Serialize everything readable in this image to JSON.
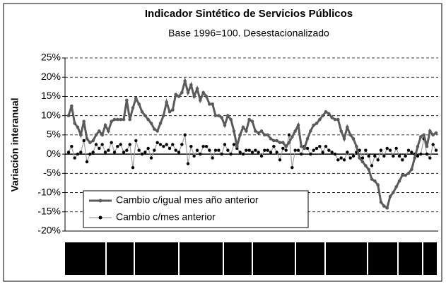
{
  "chart_data": {
    "type": "line",
    "title": "Indicador Sintético de Servicios Públicos",
    "subtitle": "Base 1996=100. Desestacionalizado",
    "y_label": "Variación interanual",
    "ylim": [
      -20,
      25
    ],
    "yticks": [
      {
        "value": -20,
        "label": "-20%"
      },
      {
        "value": -15,
        "label": "-15%"
      },
      {
        "value": -10,
        "label": "-10%"
      },
      {
        "value": -5,
        "label": "-5%"
      },
      {
        "value": 0,
        "label": "0%"
      },
      {
        "value": 5,
        "label": "5%"
      },
      {
        "value": 10,
        "label": "10%"
      },
      {
        "value": 15,
        "label": "15%"
      },
      {
        "value": 20,
        "label": "20%"
      },
      {
        "value": 25,
        "label": "25%"
      }
    ],
    "grid": true,
    "legend": "lower left",
    "series": [
      {
        "name": "Cambio c/igual mes año anterior",
        "color": "#5a5a5a",
        "marker_color": "#5a5a5a",
        "values": [
          10,
          12.5,
          8,
          7,
          5,
          8.5,
          4,
          3,
          3.5,
          5,
          6,
          5,
          7.5,
          6,
          8.5,
          9,
          9,
          9,
          9,
          14,
          9,
          12,
          14.5,
          13,
          11,
          10,
          9,
          8,
          6.5,
          6,
          8,
          10,
          13.5,
          11,
          11.5,
          15.5,
          15,
          16,
          19,
          16,
          18,
          15,
          17,
          14,
          16,
          15,
          13,
          13,
          10,
          10,
          9.5,
          7.5,
          10,
          9,
          6,
          2,
          5,
          7,
          6,
          9,
          8.5,
          6,
          5.5,
          6,
          5,
          5,
          4,
          3.5,
          3.5,
          3,
          3,
          2,
          3,
          4.5,
          6,
          7.5,
          2,
          1.5,
          4,
          6,
          7.5,
          8,
          9,
          10,
          11,
          10.5,
          9.5,
          9,
          9,
          6,
          4,
          7,
          5,
          4,
          2,
          -1,
          -2,
          -3,
          -4,
          -6.5,
          -7,
          -8,
          -12.5,
          -13.5,
          -14,
          -11,
          -10,
          -8.5,
          -7,
          -5.5,
          -5.5,
          -5,
          -4,
          -1,
          2,
          4.5,
          5,
          2,
          6,
          5,
          5.5
        ]
      },
      {
        "name": "Cambio c/mes anterior",
        "color": "#a0a0a0",
        "marker_color": "#000000",
        "values": [
          0.5,
          2,
          -1,
          0,
          0.5,
          3.5,
          -2,
          0,
          0.5,
          2.5,
          1.5,
          2.5,
          0.5,
          1,
          3,
          0.5,
          2,
          2.5,
          0.5,
          1,
          2.5,
          -3.5,
          3.5,
          1,
          0,
          0.5,
          1.5,
          -1,
          1,
          3,
          2.5,
          2,
          2.5,
          1.5,
          2.5,
          1,
          0.5,
          2.5,
          5,
          -2.5,
          2,
          -0.5,
          1,
          0,
          2,
          2,
          1,
          -1,
          1,
          1,
          0,
          2.5,
          1,
          0,
          2.5,
          1.5,
          0.5,
          0,
          1,
          1,
          0.5,
          1,
          0.5,
          -0.5,
          1,
          1,
          0.5,
          2,
          0.5,
          -1.5,
          1.5,
          1,
          5,
          -3.5,
          1,
          1,
          0,
          2,
          1.5,
          0,
          1,
          1.5,
          2,
          0.5,
          2,
          1,
          0.5,
          0,
          -1.5,
          -1,
          -1.5,
          0.5,
          -1,
          -0.5,
          0.5,
          1,
          -1,
          1,
          -0.5,
          -3,
          -0.5,
          -1.5,
          1,
          -0.5,
          1.5,
          1,
          -0.5,
          1.5,
          -0.5,
          -1.5,
          -0.5,
          1,
          0.5,
          0,
          -0.5,
          0,
          4,
          0,
          -1,
          2.5,
          1
        ]
      }
    ]
  }
}
